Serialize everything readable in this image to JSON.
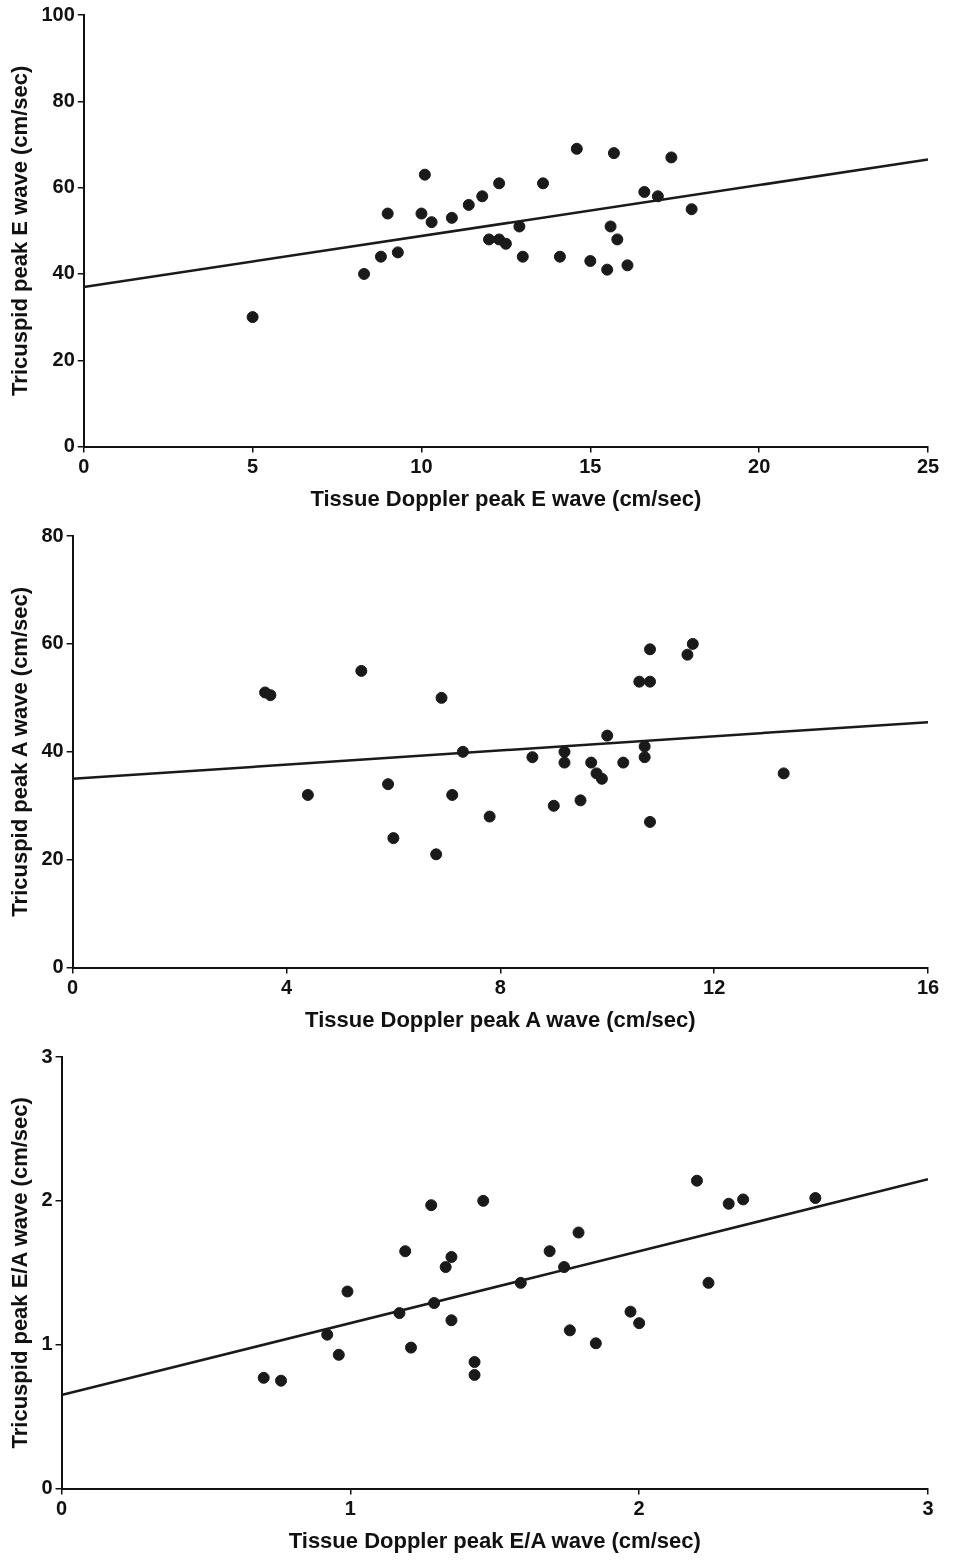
{
  "chart_data": [
    {
      "type": "scatter",
      "xlabel": "Tissue Doppler peak E wave (cm/sec)",
      "ylabel": "Tricuspid peak E wave (cm/sec)",
      "xlim": [
        0,
        25
      ],
      "ylim": [
        0,
        100
      ],
      "xticks": [
        0,
        5,
        10,
        15,
        20,
        25
      ],
      "yticks": [
        0,
        20,
        40,
        60,
        80,
        100
      ],
      "series": [
        {
          "marker": "circle",
          "color": "#1a1a1a",
          "x": [
            5,
            8.3,
            8.8,
            9,
            9.3,
            10,
            10.1,
            10.3,
            10.9,
            11.4,
            11.8,
            12,
            12.3,
            12.3,
            12.5,
            12.9,
            13,
            13.6,
            14.1,
            14.6,
            15,
            15.5,
            15.6,
            15.7,
            15.8,
            16.1,
            16.6,
            17,
            17.4,
            18
          ],
          "values": [
            30,
            40,
            44,
            54,
            45,
            54,
            63,
            52,
            53,
            56,
            58,
            48,
            61,
            48,
            47,
            51,
            44,
            61,
            44,
            69,
            43,
            41,
            51,
            68,
            48,
            42,
            59,
            58,
            67,
            55
          ]
        },
        {
          "type": "line",
          "marker": "none",
          "color": "#1a1a1a",
          "x": [
            0,
            25
          ],
          "values": [
            37,
            66.5
          ]
        }
      ]
    },
    {
      "type": "scatter",
      "xlabel": "Tissue Doppler peak A wave (cm/sec)",
      "ylabel": "Tricuspid peak A wave (cm/sec)",
      "xlim": [
        0,
        16
      ],
      "ylim": [
        0,
        80
      ],
      "xticks": [
        0,
        4,
        8,
        12,
        16
      ],
      "yticks": [
        0,
        20,
        40,
        60,
        80
      ],
      "series": [
        {
          "marker": "circle",
          "color": "#1a1a1a",
          "x": [
            3.6,
            3.7,
            4.4,
            5.4,
            5.9,
            6,
            6.8,
            6.9,
            7.1,
            7.3,
            7.8,
            8.6,
            9,
            9.2,
            9.2,
            9.5,
            9.7,
            9.8,
            9.9,
            10,
            10.3,
            10.6,
            10.7,
            10.7,
            10.8,
            10.8,
            10.8,
            11.5,
            11.6,
            13.3
          ],
          "values": [
            51,
            50.5,
            32,
            55,
            34,
            24,
            21,
            50,
            32,
            40,
            28,
            39,
            30,
            40,
            38,
            31,
            38,
            36,
            35,
            43,
            38,
            53,
            41,
            39,
            59,
            53,
            27,
            58,
            60,
            36
          ]
        },
        {
          "type": "line",
          "marker": "none",
          "color": "#1a1a1a",
          "x": [
            0,
            16
          ],
          "values": [
            35,
            45.5
          ]
        }
      ]
    },
    {
      "type": "scatter",
      "xlabel": "Tissue Doppler peak E/A wave (cm/sec)",
      "ylabel": "Tricuspid peak E/A wave (cm/sec)",
      "xlim": [
        0,
        3
      ],
      "ylim": [
        0,
        3
      ],
      "xticks": [
        0,
        1,
        2,
        3
      ],
      "yticks": [
        0,
        1,
        2,
        3
      ],
      "series": [
        {
          "marker": "circle",
          "color": "#1a1a1a",
          "x": [
            0.7,
            0.76,
            0.92,
            0.96,
            0.99,
            1.17,
            1.19,
            1.21,
            1.28,
            1.29,
            1.33,
            1.35,
            1.35,
            1.43,
            1.43,
            1.46,
            1.59,
            1.69,
            1.74,
            1.76,
            1.79,
            1.85,
            1.97,
            2.0,
            2.2,
            2.24,
            2.31,
            2.36,
            2.61
          ],
          "values": [
            0.77,
            0.75,
            1.07,
            0.93,
            1.37,
            1.22,
            1.65,
            0.98,
            1.97,
            1.29,
            1.54,
            1.61,
            1.17,
            0.88,
            0.79,
            2.0,
            1.43,
            1.65,
            1.54,
            1.1,
            1.78,
            1.01,
            1.23,
            1.15,
            2.14,
            1.43,
            1.98,
            2.01,
            2.02
          ]
        },
        {
          "type": "line",
          "marker": "none",
          "color": "#1a1a1a",
          "x": [
            0,
            3
          ],
          "values": [
            0.65,
            2.15
          ]
        }
      ]
    }
  ]
}
